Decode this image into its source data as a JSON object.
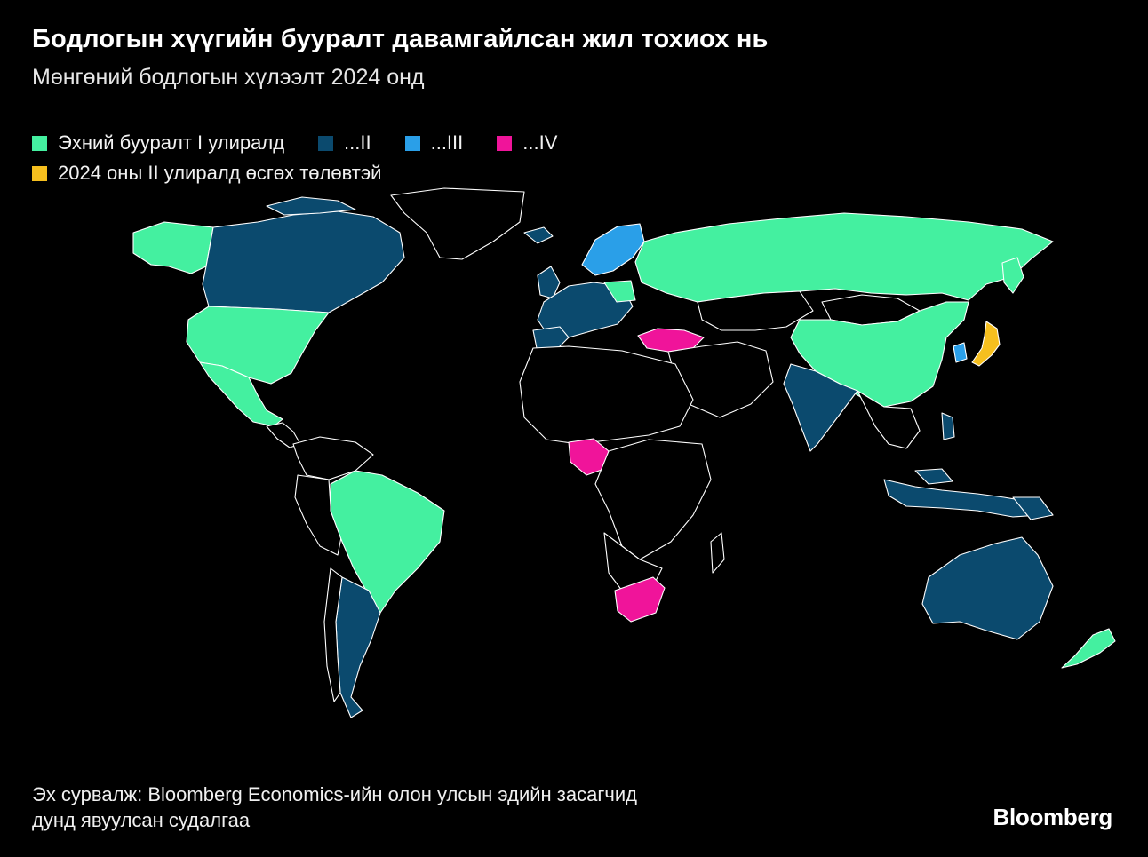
{
  "title": "Бодлогын хүүгийн бууралт давамгайлсан жил тохиох нь",
  "subtitle": "Мөнгөний бодлогын хүлээлт 2024 онд",
  "legend": [
    {
      "label": "Эхний бууралт I улиралд",
      "color": "#44f0a0"
    },
    {
      "label": "...II",
      "color": "#0b4a6e"
    },
    {
      "label": "...III",
      "color": "#2a9fe8"
    },
    {
      "label": "...IV",
      "color": "#f0149a"
    },
    {
      "label": "2024 оны II улиралд өсгөх төлөвтэй",
      "color": "#f6bf1e"
    }
  ],
  "colors": {
    "q1": "#44f0a0",
    "q2": "#0b4a6e",
    "q3": "#2a9fe8",
    "q4": "#f0149a",
    "hike": "#f6bf1e",
    "none": "#000000"
  },
  "source_lines": [
    "Эх сурвалж: Bloomberg Economics-ийн олон улсын эдийн засагчид",
    "дунд явуулсан судалгаа"
  ],
  "logo": "Bloomberg"
}
